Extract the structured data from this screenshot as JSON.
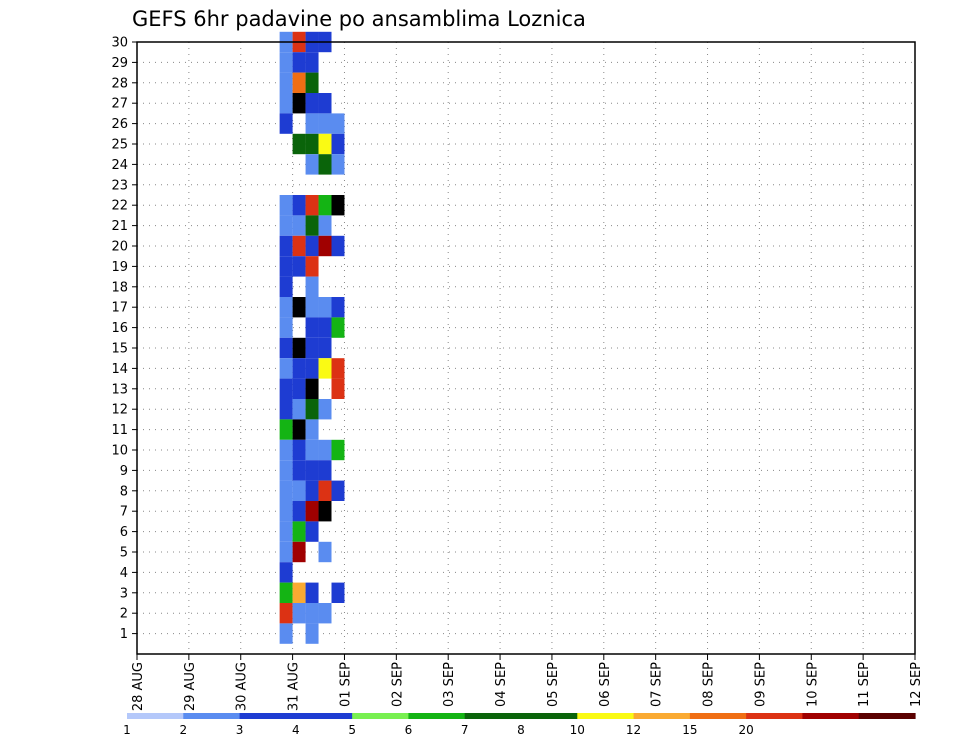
{
  "chart_data": {
    "type": "heatmap",
    "title": "GEFS 6hr padavine po ansamblima Loznica",
    "xlabel": "",
    "ylabel": "",
    "x_ticks": [
      "28 AUG",
      "29 AUG",
      "30 AUG",
      "31 AUG",
      "01 SEP",
      "02 SEP",
      "03 SEP",
      "04 SEP",
      "05 SEP",
      "06 SEP",
      "07 SEP",
      "08 SEP",
      "09 SEP",
      "10 SEP",
      "11 SEP",
      "12 SEP"
    ],
    "x_range": [
      "2022-08-28 00Z",
      "2022-09-12 00Z"
    ],
    "time_step_hours": 6,
    "ylim": [
      0,
      30
    ],
    "y_ticks": [
      1,
      2,
      3,
      4,
      5,
      6,
      7,
      8,
      9,
      10,
      11,
      12,
      13,
      14,
      15,
      16,
      17,
      18,
      19,
      20,
      21,
      22,
      23,
      24,
      25,
      26,
      27,
      28,
      29,
      30
    ],
    "grid": "dotted",
    "colorbar": {
      "labels": [
        "1",
        "2",
        "3",
        "4",
        "5",
        "6",
        "7",
        "8",
        "10",
        "12",
        "15",
        "20"
      ],
      "colors": [
        "#b4c8fa",
        "#5a8cf0",
        "#1e3cd2",
        "#1e3cd2",
        "#78f050",
        "#14b414",
        "#0a640a",
        "#0a640a",
        "#fafa14",
        "#faaa32",
        "#f06e14",
        "#dc3214",
        "#a00000",
        "#5a0000"
      ]
    },
    "cells": [
      {
        "day": "2022-08-30",
        "hour": 18,
        "members": [
          [
            30,
            1
          ],
          [
            29,
            1
          ],
          [
            28,
            1
          ],
          [
            27,
            1
          ],
          [
            26,
            2
          ],
          [
            22,
            1
          ],
          [
            21,
            1
          ],
          [
            20,
            2
          ],
          [
            19,
            2
          ],
          [
            18,
            2
          ],
          [
            17,
            1
          ],
          [
            16,
            1
          ],
          [
            15,
            2
          ],
          [
            14,
            1
          ],
          [
            13,
            2
          ],
          [
            12,
            2
          ],
          [
            11,
            5
          ],
          [
            10,
            1
          ],
          [
            9,
            1
          ],
          [
            8,
            1
          ],
          [
            7,
            1
          ],
          [
            6,
            1
          ],
          [
            5,
            1
          ],
          [
            4,
            2
          ],
          [
            3,
            5
          ],
          [
            2,
            11
          ],
          [
            1,
            1
          ]
        ]
      },
      {
        "day": "2022-08-31",
        "hour": 0,
        "members": [
          [
            30,
            11
          ],
          [
            29,
            2
          ],
          [
            28,
            10
          ],
          [
            27,
            16
          ],
          [
            25,
            7
          ],
          [
            22,
            3
          ],
          [
            21,
            1
          ],
          [
            20,
            11
          ],
          [
            19,
            2
          ],
          [
            17,
            20
          ],
          [
            15,
            20
          ],
          [
            14,
            2
          ],
          [
            13,
            2
          ],
          [
            12,
            1
          ],
          [
            11,
            15
          ],
          [
            10,
            3
          ],
          [
            9,
            3
          ],
          [
            8,
            1
          ],
          [
            7,
            3
          ],
          [
            6,
            5
          ],
          [
            5,
            12
          ],
          [
            3,
            9
          ],
          [
            2,
            1
          ]
        ]
      },
      {
        "day": "2022-08-31",
        "hour": 6,
        "members": [
          [
            30,
            3
          ],
          [
            29,
            3
          ],
          [
            28,
            7
          ],
          [
            27,
            3
          ],
          [
            26,
            1
          ],
          [
            25,
            7
          ],
          [
            24,
            1
          ],
          [
            22,
            11
          ],
          [
            21,
            6
          ],
          [
            20,
            3
          ],
          [
            19,
            11
          ],
          [
            18,
            1
          ],
          [
            17,
            1
          ],
          [
            16,
            3
          ],
          [
            15,
            3
          ],
          [
            14,
            3
          ],
          [
            13,
            15
          ],
          [
            12,
            6
          ],
          [
            11,
            1
          ],
          [
            10,
            1
          ],
          [
            9,
            3
          ],
          [
            8,
            3
          ],
          [
            7,
            12
          ],
          [
            6,
            3
          ],
          [
            3,
            2
          ],
          [
            2,
            1
          ],
          [
            1,
            1
          ]
        ]
      },
      {
        "day": "2022-08-31",
        "hour": 12,
        "members": [
          [
            30,
            3
          ],
          [
            27,
            3
          ],
          [
            26,
            1
          ],
          [
            25,
            8
          ],
          [
            24,
            6
          ],
          [
            22,
            5
          ],
          [
            21,
            1
          ],
          [
            20,
            12
          ],
          [
            17,
            1
          ],
          [
            16,
            2
          ],
          [
            15,
            2
          ],
          [
            14,
            8
          ],
          [
            12,
            1
          ],
          [
            10,
            1
          ],
          [
            9,
            3
          ],
          [
            8,
            11
          ],
          [
            7,
            15
          ],
          [
            5,
            1
          ],
          [
            2,
            1
          ]
        ]
      },
      {
        "day": "2022-08-31",
        "hour": 18,
        "members": [
          [
            26,
            1
          ],
          [
            25,
            3
          ],
          [
            24,
            1
          ],
          [
            22,
            15
          ],
          [
            20,
            3
          ],
          [
            17,
            3
          ],
          [
            16,
            5
          ],
          [
            14,
            11
          ],
          [
            13,
            11
          ],
          [
            10,
            5
          ],
          [
            8,
            2
          ],
          [
            3,
            2
          ]
        ]
      }
    ]
  }
}
